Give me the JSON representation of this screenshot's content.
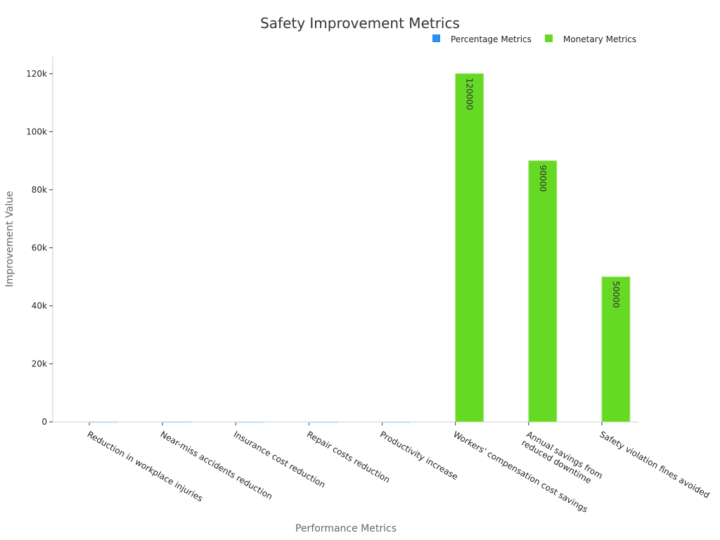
{
  "chart_data": {
    "type": "bar",
    "title": "Safety Improvement Metrics",
    "xlabel": "Performance Metrics",
    "ylabel": "Improvement Value",
    "ylim": [
      0,
      126000
    ],
    "yticks": [
      0,
      20000,
      40000,
      60000,
      80000,
      100000,
      120000
    ],
    "ytick_labels": [
      "0",
      "20k",
      "40k",
      "60k",
      "80k",
      "100k",
      "120k"
    ],
    "grid": false,
    "legend_position": "top-right",
    "categories": [
      "Reduction in workplace injuries",
      "Near-miss accidents reduction",
      "Insurance cost reduction",
      "Repair costs reduction",
      "Productivity increase",
      "Workers' compensation cost savings",
      "Annual savings from reduced downtime",
      "Safety violation fines avoided"
    ],
    "series": [
      {
        "name": "Percentage Metrics",
        "color": "#2b8ff0",
        "values": [
          45,
          60,
          25,
          35,
          20,
          null,
          null,
          null
        ]
      },
      {
        "name": "Monetary Metrics",
        "color": "#66d925",
        "values": [
          null,
          null,
          null,
          null,
          null,
          120000,
          90000,
          50000
        ]
      }
    ],
    "data_labels": [
      "120000",
      "90000",
      "50000"
    ]
  }
}
